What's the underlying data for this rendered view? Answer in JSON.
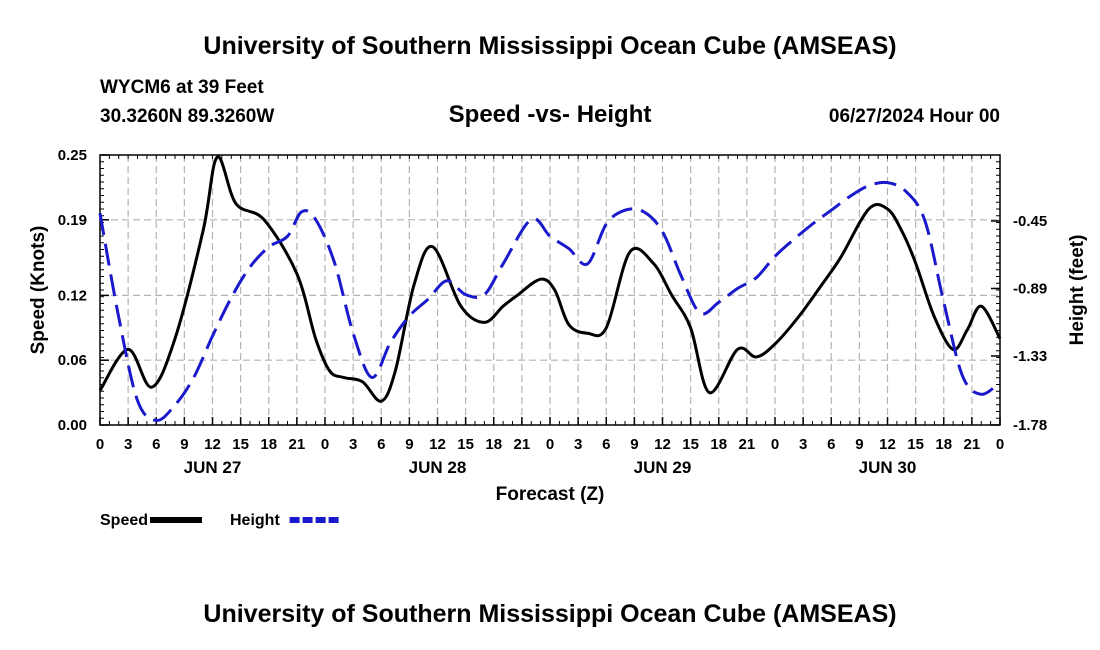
{
  "header": {
    "title": "University of Southern Mississippi Ocean Cube (AMSEAS)",
    "station": "WYCM6 at 39 Feet",
    "coords": "30.3260N  89.3260W",
    "subtitle": "Speed -vs- Height",
    "date": "06/27/2024 Hour 00"
  },
  "footer": {
    "title": "University of Southern Mississippi Ocean Cube (AMSEAS)"
  },
  "chart_data": {
    "type": "line",
    "title": "Speed -vs- Height",
    "xlabel": "Forecast (Z)",
    "ylabel_left": "Speed (Knots)",
    "ylabel_right": "Height (feet)",
    "x_range_hours": [
      0,
      96
    ],
    "x_tick_labels": [
      "0",
      "3",
      "6",
      "9",
      "12",
      "15",
      "18",
      "21",
      "0",
      "3",
      "6",
      "9",
      "12",
      "15",
      "18",
      "21",
      "0",
      "3",
      "6",
      "9",
      "12",
      "15",
      "18",
      "21",
      "0",
      "3",
      "6",
      "9",
      "12",
      "15",
      "18",
      "21",
      "0"
    ],
    "day_labels": [
      {
        "label": "JUN 27",
        "hour": 12
      },
      {
        "label": "JUN 28",
        "hour": 36
      },
      {
        "label": "JUN 29",
        "hour": 60
      },
      {
        "label": "JUN 30",
        "hour": 84
      }
    ],
    "left_axis": {
      "ylim": [
        0,
        0.25
      ],
      "ticks": [
        0.0,
        0.06,
        0.12,
        0.19,
        0.25
      ],
      "tick_labels": [
        "0.00",
        "0.06",
        "0.12",
        "0.19",
        "0.25"
      ]
    },
    "right_axis": {
      "ylim": [
        -1.78,
        -0.02
      ],
      "ticks": [
        -1.78,
        -1.33,
        -0.89,
        -0.45
      ],
      "tick_labels": [
        "-1.78",
        "-1.33",
        "-0.89",
        "-0.45"
      ]
    },
    "grid": true,
    "legend": {
      "position": "bottom-left"
    },
    "series": [
      {
        "name": "Speed",
        "color": "#000000",
        "dash": "solid",
        "axis": "left",
        "x": [
          0,
          3,
          5.5,
          8,
          11,
          12.5,
          14.5,
          17.5,
          21,
          23,
          24.5,
          26,
          28,
          30,
          31.5,
          33.5,
          35.5,
          38.5,
          41,
          43,
          44.5,
          47,
          48.5,
          50,
          52,
          54,
          56.5,
          59,
          61,
          63,
          65,
          68,
          70,
          72,
          74.5,
          77,
          79,
          82,
          84,
          85.5,
          87,
          89,
          91,
          92.5,
          94,
          96
        ],
        "y": [
          0.032,
          0.07,
          0.035,
          0.08,
          0.18,
          0.248,
          0.205,
          0.19,
          0.14,
          0.08,
          0.05,
          0.044,
          0.04,
          0.022,
          0.05,
          0.13,
          0.165,
          0.11,
          0.095,
          0.11,
          0.12,
          0.135,
          0.125,
          0.093,
          0.085,
          0.09,
          0.16,
          0.15,
          0.12,
          0.09,
          0.03,
          0.07,
          0.063,
          0.075,
          0.1,
          0.13,
          0.155,
          0.2,
          0.2,
          0.18,
          0.15,
          0.1,
          0.07,
          0.088,
          0.11,
          0.08
        ]
      },
      {
        "name": "Height",
        "color": "#1a1acc",
        "dash": "dashed",
        "axis": "right",
        "x": [
          0,
          2,
          4,
          6,
          8,
          10,
          12,
          14,
          16,
          18,
          20,
          21.5,
          23,
          25,
          27,
          29,
          31,
          33,
          35,
          37,
          39,
          41,
          43,
          46,
          48,
          50,
          52,
          54,
          56,
          58,
          60,
          62,
          64,
          66,
          68,
          70,
          72,
          74,
          76,
          78,
          80,
          82,
          84,
          86,
          88,
          90,
          92,
          94,
          96
        ],
        "y": [
          -0.4,
          -1.08,
          -1.62,
          -1.75,
          -1.65,
          -1.47,
          -1.2,
          -0.95,
          -0.75,
          -0.62,
          -0.55,
          -0.39,
          -0.44,
          -0.72,
          -1.18,
          -1.47,
          -1.24,
          -1.07,
          -0.96,
          -0.84,
          -0.93,
          -0.93,
          -0.73,
          -0.44,
          -0.55,
          -0.63,
          -0.73,
          -0.47,
          -0.38,
          -0.39,
          -0.52,
          -0.81,
          -1.05,
          -0.98,
          -0.89,
          -0.82,
          -0.68,
          -0.57,
          -0.47,
          -0.38,
          -0.29,
          -0.22,
          -0.2,
          -0.26,
          -0.45,
          -0.98,
          -1.46,
          -1.58,
          -1.5
        ]
      }
    ]
  }
}
